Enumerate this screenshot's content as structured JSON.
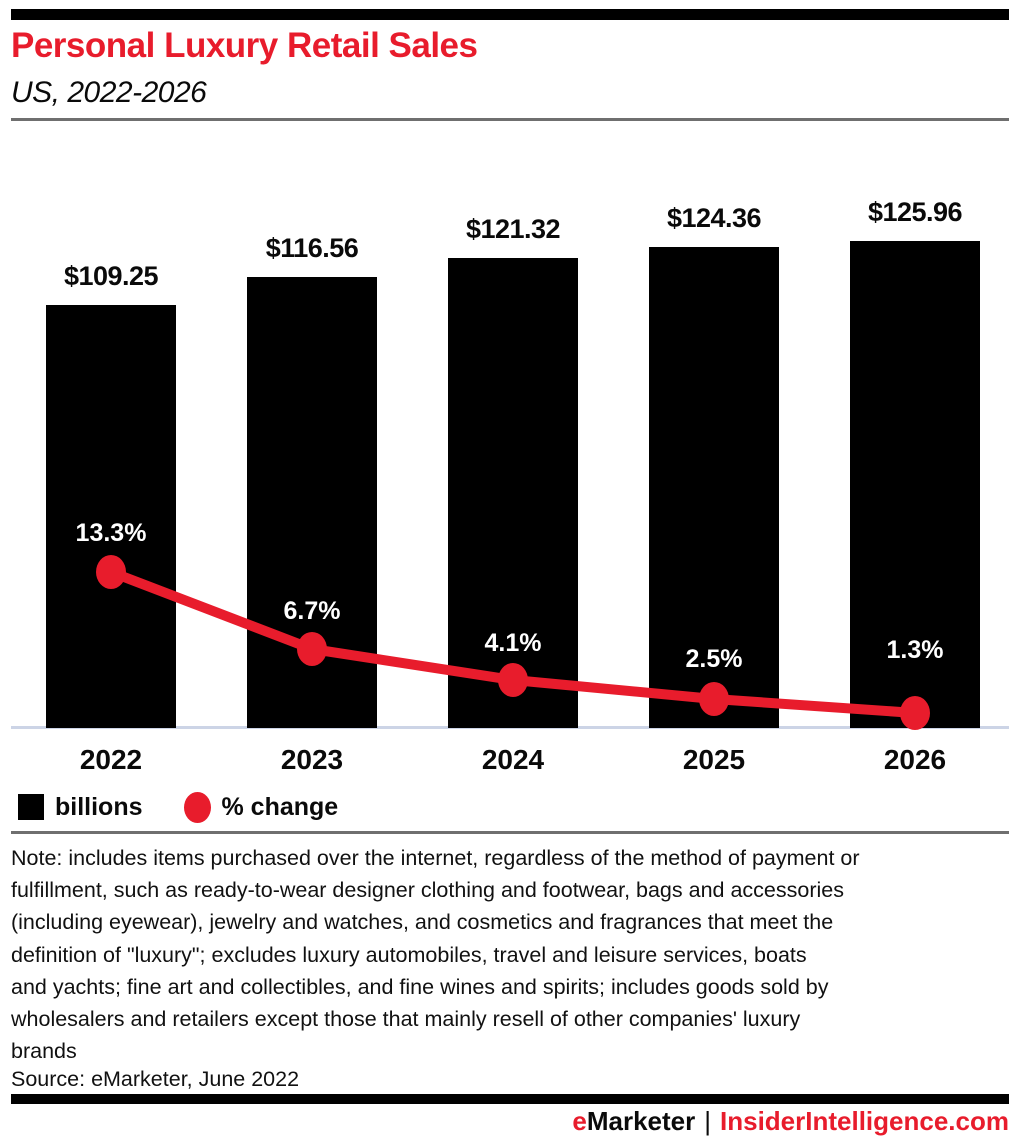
{
  "header": {
    "title": "Personal Luxury Retail Sales",
    "subtitle": "US, 2022-2026"
  },
  "chart_data": {
    "type": "bar",
    "subtype": "combo-bar-line",
    "title": "Personal Luxury Retail Sales",
    "subtitle": "US, 2022-2026",
    "categories": [
      "2022",
      "2023",
      "2024",
      "2025",
      "2026"
    ],
    "series": [
      {
        "name": "billions",
        "type": "bar",
        "color": "#000000",
        "values": [
          109.25,
          116.56,
          121.32,
          124.36,
          125.96
        ],
        "labels": [
          "$109.25",
          "$116.56",
          "$121.32",
          "$124.36",
          "$125.96"
        ]
      },
      {
        "name": "% change",
        "type": "line",
        "color": "#e81c2c",
        "values": [
          13.3,
          6.7,
          4.1,
          2.5,
          1.3
        ],
        "labels": [
          "13.3%",
          "6.7%",
          "4.1%",
          "2.5%",
          "1.3%"
        ]
      }
    ],
    "xlabel": "",
    "ylabel": "",
    "gridlines": false,
    "value_labels_shown": true,
    "legend": {
      "position": "bottom-left",
      "entries": [
        {
          "label": "billions",
          "marker": "square",
          "color": "#000000"
        },
        {
          "label": "% change",
          "marker": "circle",
          "color": "#e81c2c"
        }
      ]
    }
  },
  "note": {
    "lines": [
      "Note: includes items purchased over the internet, regardless of the method of payment or",
      "fulfillment, such as ready-to-wear designer clothing and footwear, bags and accessories",
      "(including eyewear), jewelry and watches, and cosmetics and fragrances that meet the",
      "definition of \"luxury\"; excludes luxury automobiles, travel and leisure services, boats",
      "and yachts; fine art and collectibles, and fine wines and spirits; includes goods sold by",
      "wholesalers and retailers except those that mainly resell of other companies' luxury",
      "brands"
    ]
  },
  "source": {
    "text": "Source: eMarketer, June 2022"
  },
  "brand": {
    "prefix": "e",
    "name": "Marketer",
    "separator": "|",
    "site": "InsiderIntelligence.com"
  },
  "colors": {
    "accent_red": "#e81c2c",
    "bar_black": "#000000",
    "baseline": "#ccd4e6",
    "rule_gray": "#6f6f6f",
    "pct_label": "#ffffff"
  }
}
